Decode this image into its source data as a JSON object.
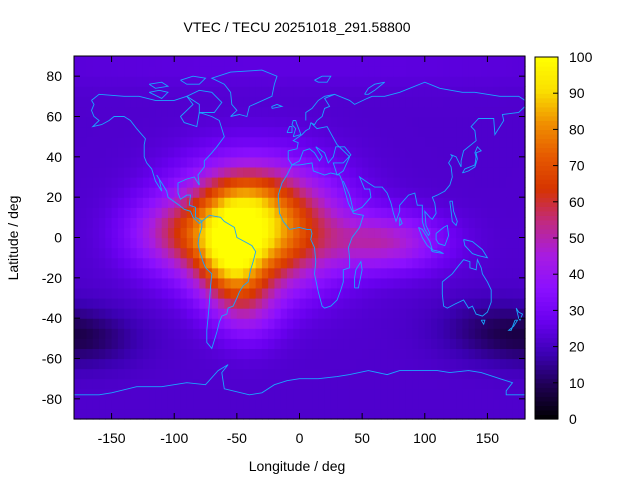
{
  "chart_data": {
    "type": "heatmap",
    "title": "VTEC / TECU 20251018_291.58800",
    "xlabel": "Longitude / deg",
    "ylabel": "Latitude / deg",
    "xlim": [
      -180,
      180
    ],
    "ylim": [
      -90,
      90
    ],
    "x_ticks": [
      -150,
      -100,
      -50,
      0,
      50,
      100,
      150
    ],
    "y_ticks": [
      -80,
      -60,
      -40,
      -20,
      0,
      20,
      40,
      60,
      80
    ],
    "colorbar": {
      "range": [
        0,
        100
      ],
      "ticks": [
        0,
        10,
        20,
        30,
        40,
        50,
        60,
        70,
        80,
        90,
        100
      ],
      "palette": [
        "#000000",
        "#1e0050",
        "#3c00b4",
        "#6a00f0",
        "#8c10ff",
        "#a81ce0",
        "#c02a80",
        "#d63400",
        "#e65a00",
        "#f09000",
        "#fae000",
        "#ffff00"
      ]
    },
    "grid_step_deg": 5,
    "background_tec": 22,
    "features": [
      {
        "name": "atlantic-anomaly",
        "lon": -35,
        "lat": 5,
        "peak_tec": 68
      },
      {
        "name": "south-america-crest",
        "lon": -55,
        "lat": -10,
        "peak_tec": 35
      },
      {
        "name": "northern-crest",
        "lon": -45,
        "lat": 22,
        "peak_tec": 12
      },
      {
        "name": "indian-ocean-extension",
        "lon": 70,
        "lat": -2,
        "peak_tec": 25
      },
      {
        "name": "pacific-east-lobe",
        "lon": -100,
        "lat": 2,
        "peak_tec": 18
      },
      {
        "name": "southern-lobe",
        "lon": -40,
        "lat": -35,
        "peak_tec": 15
      },
      {
        "name": "north-polar",
        "lon": 0,
        "lat": 85,
        "peak_tec": 3
      },
      {
        "name": "southern-depletion",
        "lon": -170,
        "lat": -50,
        "peak_tec": -10
      },
      {
        "name": "pacific-depletion",
        "lon": 150,
        "lat": -45,
        "peak_tec": -8
      }
    ],
    "overlay": "coastlines"
  }
}
